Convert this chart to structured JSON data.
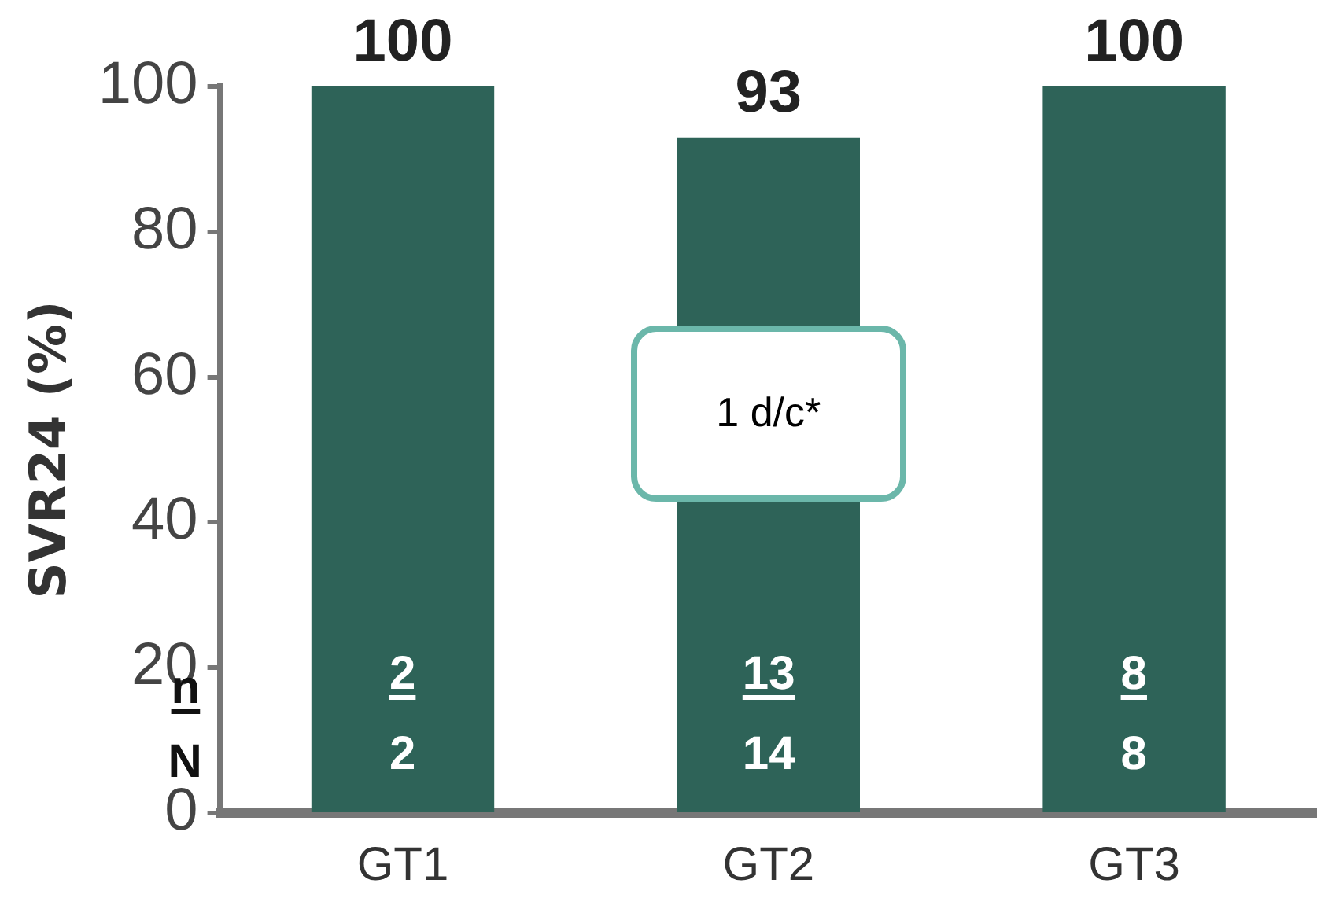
{
  "chart_data": {
    "type": "bar",
    "ylabel": "SVR24 (%)",
    "categories": [
      "GT1",
      "GT2",
      "GT3"
    ],
    "values": [
      100,
      93,
      100
    ],
    "color": "#2e6358",
    "ylim": [
      0,
      100
    ],
    "yticks": [
      0,
      20,
      40,
      60,
      80,
      100
    ],
    "grid": false,
    "legend": false,
    "data_labels": true,
    "annotations": [
      "1 d/c*",
      "n",
      "N",
      "2",
      "2",
      "13",
      "14",
      "8",
      "8"
    ]
  }
}
